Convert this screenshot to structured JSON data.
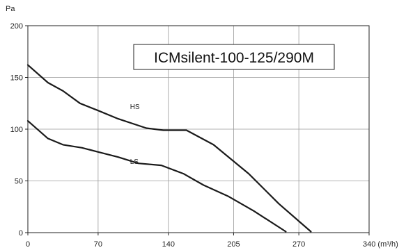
{
  "chart_data": {
    "type": "line",
    "title": "ICMsilent-100-125/290M",
    "ylabel": "Pa",
    "xlabel": "340 (m³/h)",
    "xlim": [
      0,
      340
    ],
    "ylim": [
      0,
      200
    ],
    "x_ticks": [
      "0",
      "70",
      "140",
      "205",
      "270"
    ],
    "x_tick_values": [
      0,
      70,
      140,
      205,
      270
    ],
    "y_ticks": [
      "0",
      "50",
      "100",
      "150",
      "200"
    ],
    "y_tick_values": [
      0,
      50,
      100,
      150,
      200
    ],
    "grid": true,
    "series": [
      {
        "name": "HS",
        "x": [
          0,
          20,
          35,
          52,
          70,
          90,
          118,
          135,
          158,
          185,
          220,
          250,
          282
        ],
        "y": [
          162,
          145,
          137,
          125,
          118,
          110,
          101,
          99,
          99,
          85,
          57,
          28,
          1
        ]
      },
      {
        "name": "LS",
        "x": [
          0,
          20,
          35,
          54,
          70,
          90,
          110,
          133,
          155,
          175,
          200,
          225,
          257
        ],
        "y": [
          108,
          91,
          85,
          82,
          78,
          73,
          67,
          65,
          57,
          46,
          35,
          21,
          1
        ]
      }
    ]
  }
}
